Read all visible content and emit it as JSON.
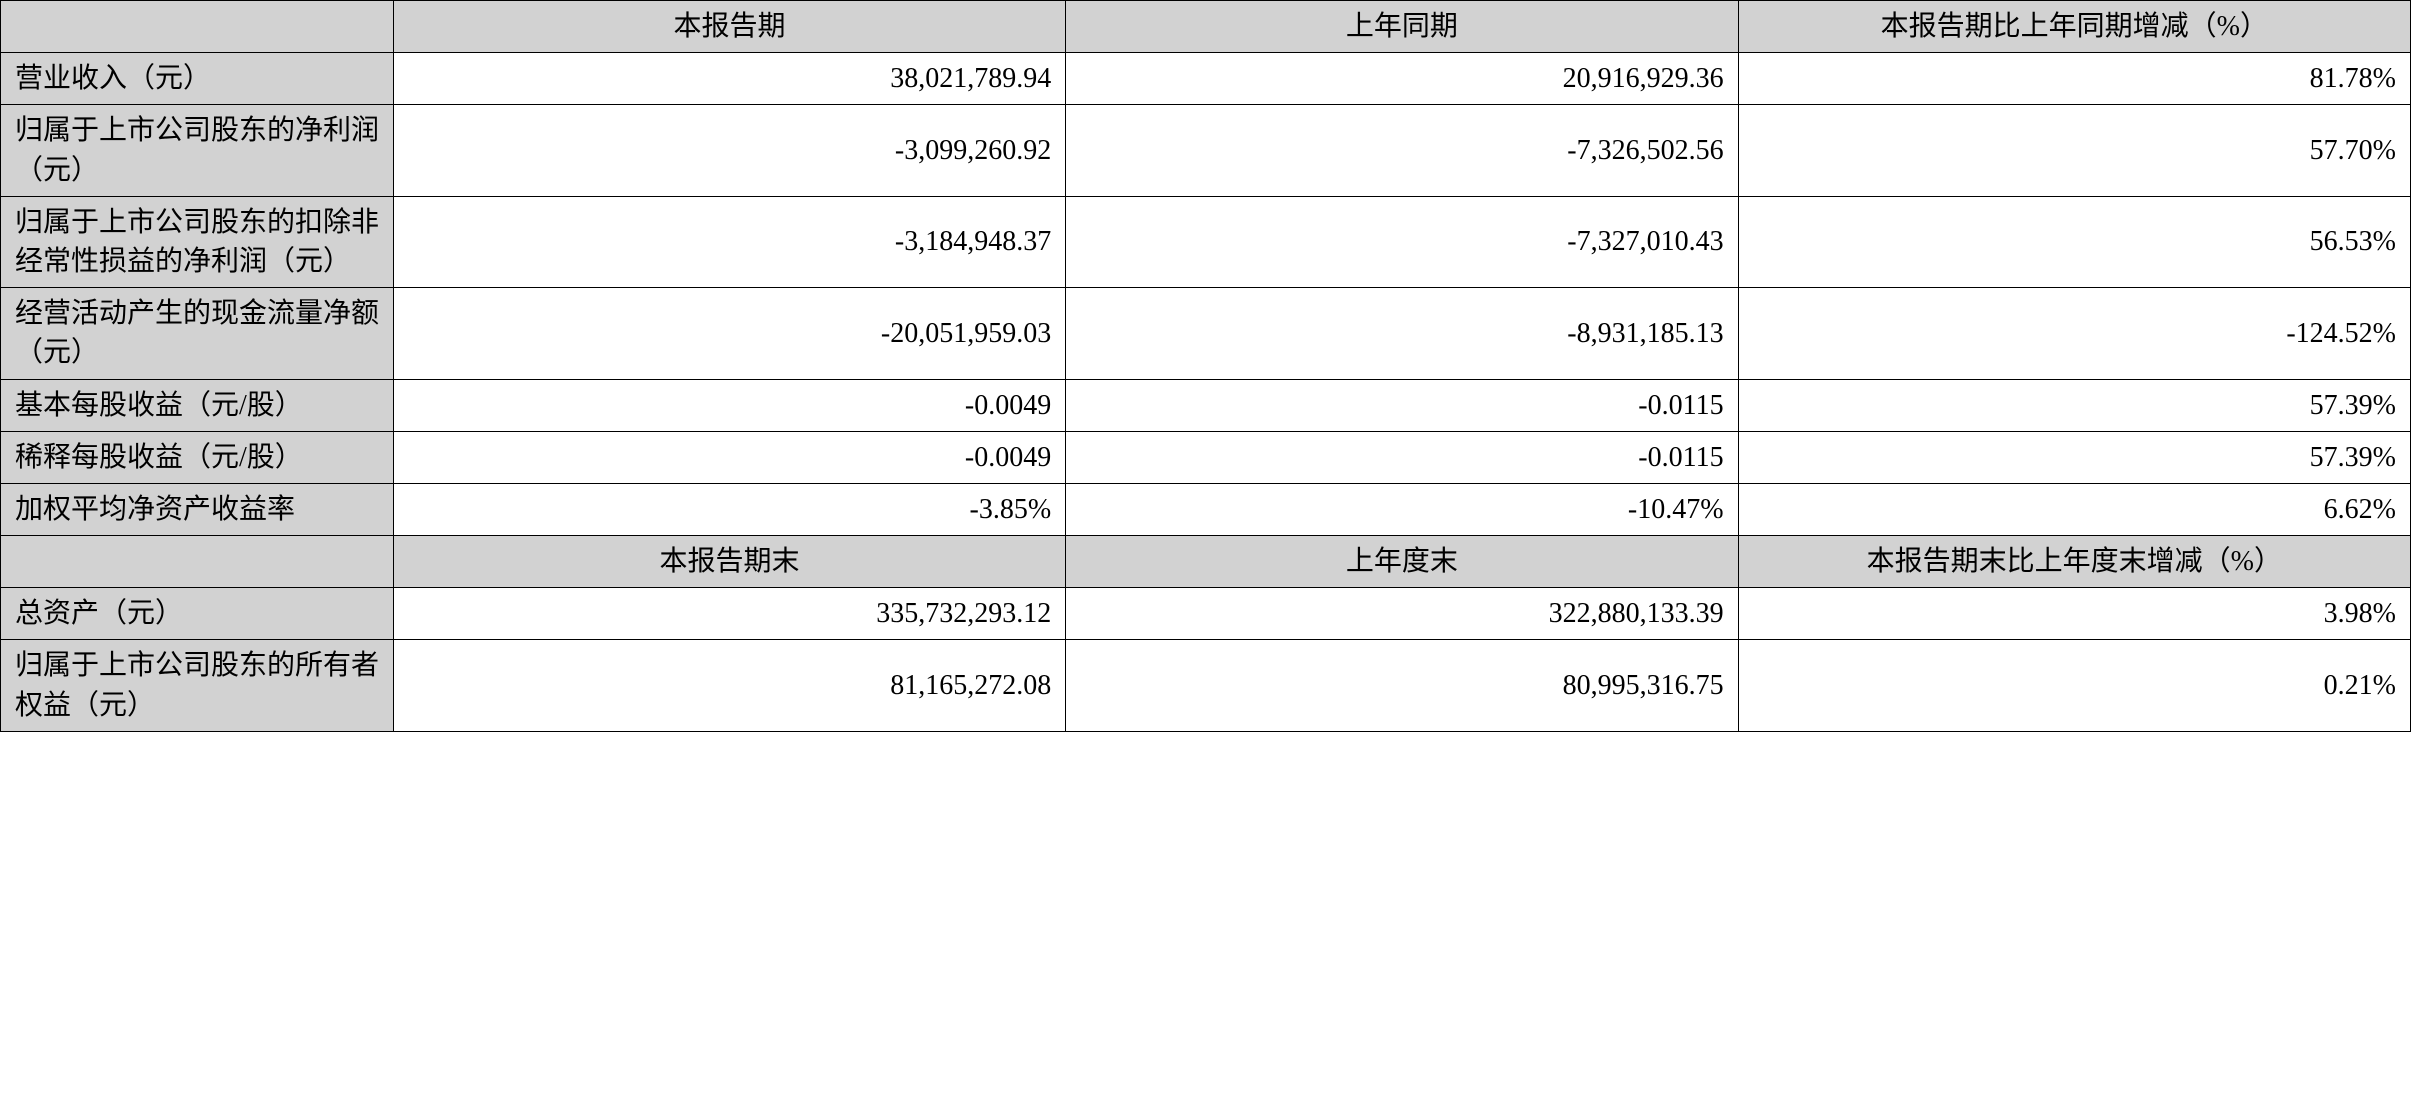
{
  "table": {
    "colors": {
      "header_bg": "#d2d2d2",
      "label_bg": "#d2d2d2",
      "value_bg": "#ffffff",
      "border": "#000000",
      "text": "#000000"
    },
    "typography": {
      "font_family": "SimSun",
      "font_size_pt": 28,
      "line_height": 1.4
    },
    "column_widths_pct": [
      16.3,
      27.9,
      27.9,
      27.9
    ],
    "section1": {
      "headers": [
        "",
        "本报告期",
        "上年同期",
        "本报告期比上年同期增减（%）"
      ],
      "rows": [
        {
          "label": "营业收入（元）",
          "col1": "38,021,789.94",
          "col2": "20,916,929.36",
          "col3": "81.78%"
        },
        {
          "label": "归属于上市公司股东的净利润（元）",
          "col1": "-3,099,260.92",
          "col2": "-7,326,502.56",
          "col3": "57.70%"
        },
        {
          "label": "归属于上市公司股东的扣除非经常性损益的净利润（元）",
          "col1": "-3,184,948.37",
          "col2": "-7,327,010.43",
          "col3": "56.53%"
        },
        {
          "label": "经营活动产生的现金流量净额（元）",
          "col1": "-20,051,959.03",
          "col2": "-8,931,185.13",
          "col3": "-124.52%"
        },
        {
          "label": "基本每股收益（元/股）",
          "col1": "-0.0049",
          "col2": "-0.0115",
          "col3": "57.39%"
        },
        {
          "label": "稀释每股收益（元/股）",
          "col1": "-0.0049",
          "col2": "-0.0115",
          "col3": "57.39%"
        },
        {
          "label": "加权平均净资产收益率",
          "col1": "-3.85%",
          "col2": "-10.47%",
          "col3": "6.62%"
        }
      ]
    },
    "section2": {
      "headers": [
        "",
        "本报告期末",
        "上年度末",
        "本报告期末比上年度末增减（%）"
      ],
      "rows": [
        {
          "label": "总资产（元）",
          "col1": "335,732,293.12",
          "col2": "322,880,133.39",
          "col3": "3.98%"
        },
        {
          "label": "归属于上市公司股东的所有者权益（元）",
          "col1": "81,165,272.08",
          "col2": "80,995,316.75",
          "col3": "0.21%"
        }
      ]
    }
  }
}
